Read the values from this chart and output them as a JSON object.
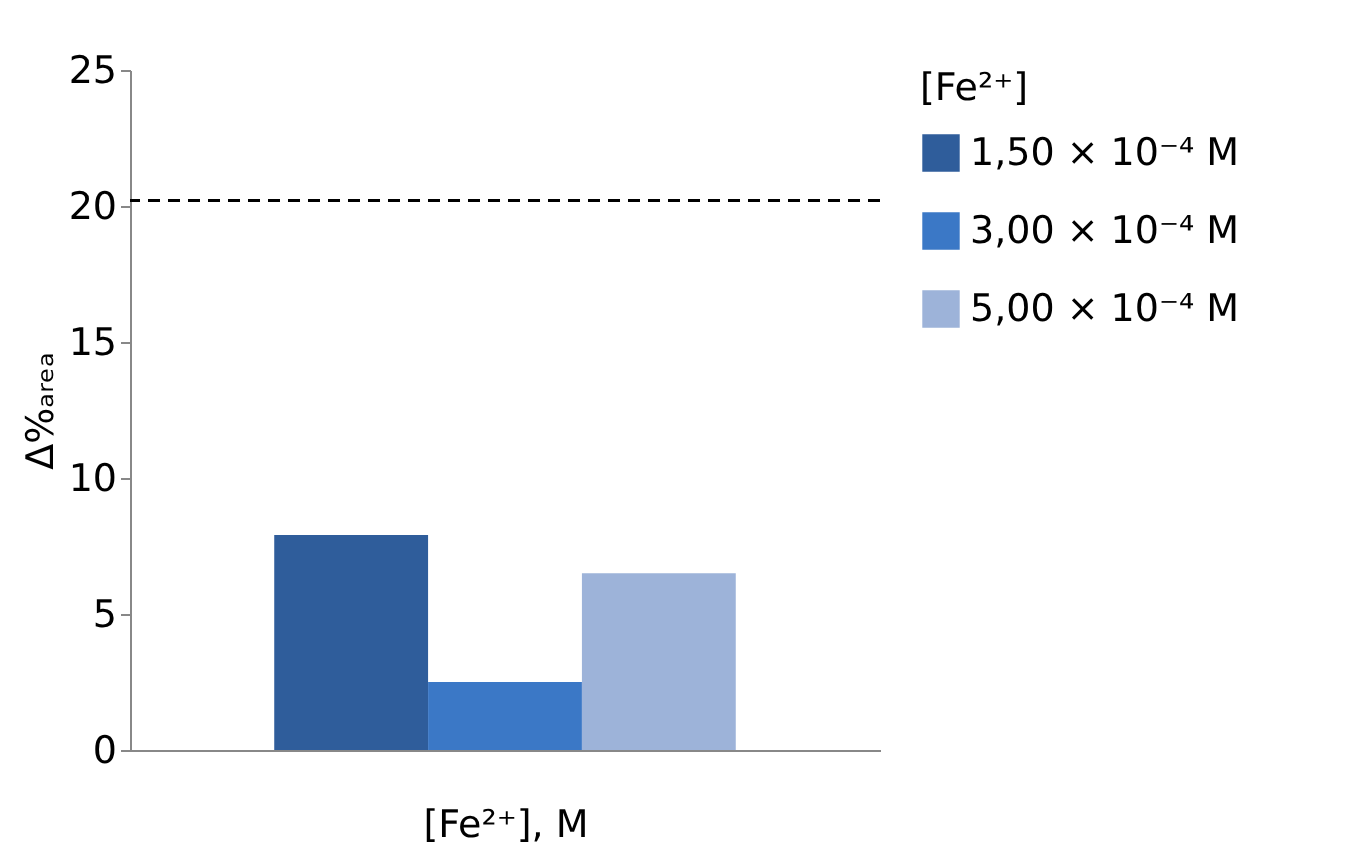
{
  "chart_data": {
    "type": "bar",
    "xlabel": "[Fe²⁺], M",
    "ylabel": "Δ%ₐᵣₑₐ",
    "legend_title": "[Fe²⁺]",
    "categories": [
      null
    ],
    "series": [
      {
        "name": "1,50 × 10⁻⁴ M",
        "color": "#2f5d9b",
        "values": [
          7.9
        ]
      },
      {
        "name": "3,00 × 10⁻⁴ M",
        "color": "#3b78c6",
        "values": [
          2.5
        ]
      },
      {
        "name": "5,00 × 10⁻⁴ M",
        "color": "#9db3d9",
        "values": [
          6.5
        ]
      }
    ],
    "ylim": [
      0,
      25
    ],
    "yticks": [
      0,
      5,
      10,
      15,
      20,
      25
    ],
    "grid": false,
    "legend": "top right",
    "tick_labels": "y",
    "ref_lines": [
      {
        "axis": "y",
        "value": 20.2,
        "line_style": "dashed",
        "color": "#000000"
      }
    ]
  }
}
